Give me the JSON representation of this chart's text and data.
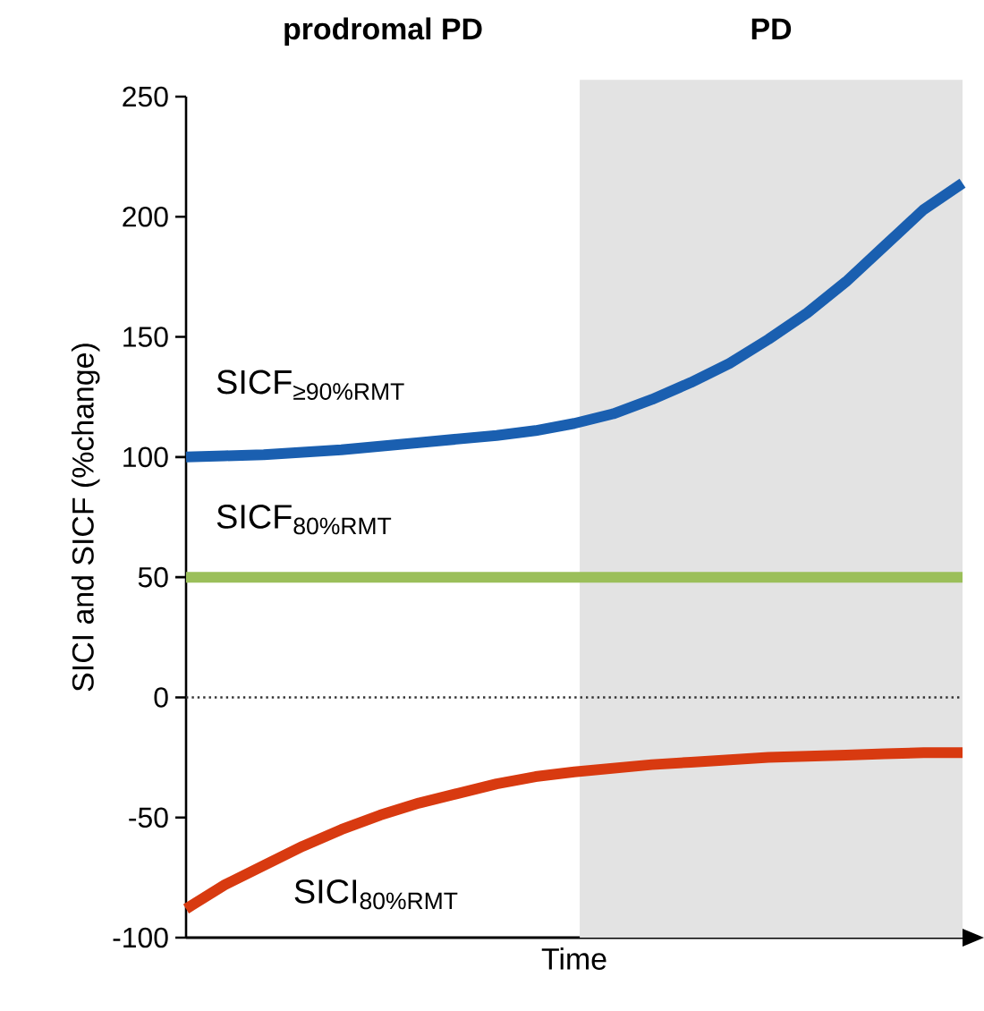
{
  "chart_data": {
    "type": "line",
    "xlabel": "Time",
    "ylabel": "SICI and SICF (%change)",
    "categories": [
      null,
      null,
      null,
      null,
      null,
      null,
      null,
      null,
      null,
      null,
      null,
      null,
      null,
      null,
      null,
      null,
      null,
      null,
      null,
      null,
      null
    ],
    "ylim": [
      -100,
      250
    ],
    "yticks": [
      -100,
      -50,
      0,
      50,
      100,
      150,
      200,
      250
    ],
    "tick_labels": "y",
    "line_style": "solid",
    "series": [
      {
        "name": "SICF$_{≥90%RMT}$",
        "color": "#1a5fb0",
        "values": [
          100,
          100.5,
          101,
          102,
          103,
          104.5,
          106,
          107.5,
          109,
          111,
          114,
          118,
          124,
          131,
          139,
          149,
          160,
          173,
          188,
          203,
          214
        ]
      },
      {
        "name": "SICF$_{80%RMT}$",
        "color": "#9bbf5a",
        "values": [
          50,
          50,
          50,
          50,
          50,
          50,
          50,
          50,
          50,
          50,
          50,
          50,
          50,
          50,
          50,
          50,
          50,
          50,
          50,
          50,
          50
        ]
      },
      {
        "name": "SICI$_{80%RMT}$",
        "color": "#d83a10",
        "values": [
          -88,
          -78,
          -70,
          -62,
          -55,
          -49,
          -44,
          -40,
          -36,
          -33,
          -31,
          -29.5,
          -28,
          -27,
          -26,
          -25,
          -24.5,
          -24,
          -23.5,
          -23,
          -23
        ]
      }
    ],
    "ref_lines": [
      {
        "axis": "y",
        "value": 0,
        "label": null,
        "line_style": "dotted",
        "color": "#333333"
      }
    ],
    "annotations": [
      "prodromal PD",
      "PD"
    ]
  }
}
